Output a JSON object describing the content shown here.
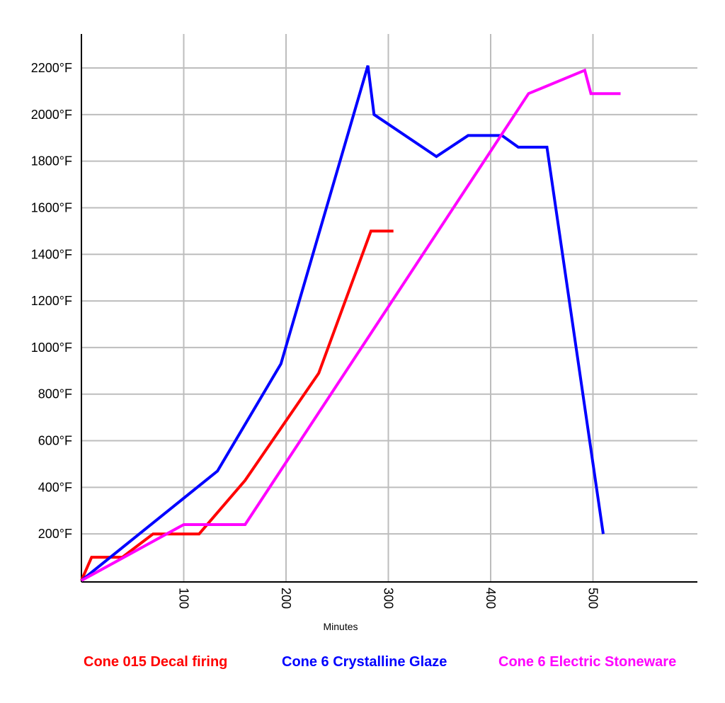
{
  "chart_data": {
    "type": "line",
    "xlabel": "Minutes",
    "ylabel": "",
    "xlim": [
      0,
      600
    ],
    "ylim": [
      0,
      2200
    ],
    "grid": true,
    "legend_placement": "bottom",
    "x_ticks": [
      100,
      200,
      300,
      400,
      500
    ],
    "y_ticks": [
      {
        "value": 200,
        "label": "200°F"
      },
      {
        "value": 400,
        "label": "400°F"
      },
      {
        "value": 600,
        "label": "600°F"
      },
      {
        "value": 800,
        "label": "800°F"
      },
      {
        "value": 1000,
        "label": "1000°F"
      },
      {
        "value": 1200,
        "label": "1200°F"
      },
      {
        "value": 1400,
        "label": "1400°F"
      },
      {
        "value": 1600,
        "label": "1600°F"
      },
      {
        "value": 1800,
        "label": "1800°F"
      },
      {
        "value": 2000,
        "label": "2000°F"
      },
      {
        "value": 2200,
        "label": "2200°F"
      }
    ],
    "series": [
      {
        "name": "Cone 015 Decal firing",
        "color": "#ff0000",
        "points": [
          [
            0,
            0
          ],
          [
            10,
            100
          ],
          [
            40,
            100
          ],
          [
            70,
            200
          ],
          [
            115,
            200
          ],
          [
            160,
            430
          ],
          [
            232,
            890
          ],
          [
            283,
            1500
          ],
          [
            305,
            1500
          ]
        ]
      },
      {
        "name": "Cone 6 Crystalline Glaze",
        "color": "#0000ff",
        "points": [
          [
            0,
            0
          ],
          [
            133,
            470
          ],
          [
            195,
            930
          ],
          [
            280,
            2210
          ],
          [
            286,
            2000
          ],
          [
            347,
            1820
          ],
          [
            378,
            1910
          ],
          [
            411,
            1910
          ],
          [
            427,
            1860
          ],
          [
            455,
            1860
          ],
          [
            510,
            200
          ]
        ]
      },
      {
        "name": "Cone 6 Electric Stoneware",
        "color": "#ff00ff",
        "points": [
          [
            0,
            0
          ],
          [
            100,
            240
          ],
          [
            160,
            240
          ],
          [
            437,
            2090
          ],
          [
            492,
            2190
          ],
          [
            498,
            2090
          ],
          [
            527,
            2090
          ]
        ]
      }
    ]
  }
}
